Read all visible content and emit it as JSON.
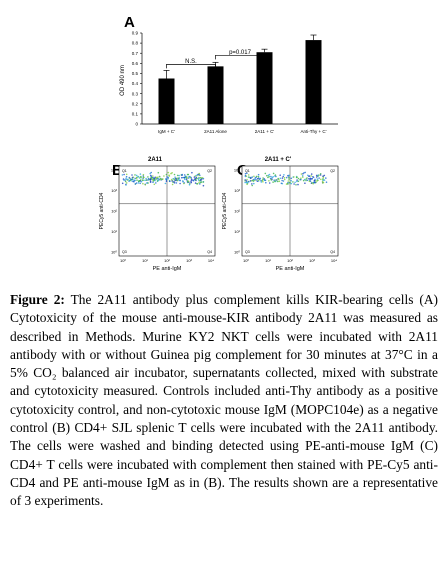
{
  "figure": {
    "panel_a_letter": "A",
    "panel_b_letter": "B",
    "panel_c_letter": "C",
    "panel_b_title": "2A11",
    "panel_c_title": "2A11 + C'",
    "flow_ylabel": "PECy5 anti-CD4",
    "flow_xlabel": "PE anti-IgM",
    "flow_yticks": [
      "10⁴",
      "10³",
      "10²",
      "10¹",
      "10⁰"
    ],
    "flow_xticks": [
      "10⁰",
      "10¹",
      "10²",
      "10³",
      "10⁴"
    ],
    "b_quadrants": [
      "Q1",
      "Q2",
      "Q3",
      "Q4"
    ],
    "c_quadrants": [
      "Q1",
      "Q2",
      "Q3",
      "Q4"
    ]
  },
  "chart_data": {
    "type": "bar",
    "categories": [
      "IgM + C'",
      "2A11 Alone",
      "2A11 + C'",
      "Anti-Thy + C'"
    ],
    "values": [
      0.45,
      0.57,
      0.71,
      0.83
    ],
    "errors": [
      0.08,
      0.04,
      0.03,
      0.05
    ],
    "ylabel": "OD 490 nm",
    "ylim": [
      0,
      0.9
    ],
    "yticks": [
      "0",
      "0.1",
      "0.2",
      "0.3",
      "0.4",
      "0.5",
      "0.6",
      "0.7",
      "0.8",
      "0.9"
    ],
    "bar_color": "#000000",
    "annotations": [
      {
        "text": "N.S.",
        "from": 0,
        "to": 1
      },
      {
        "text": "p=0.017",
        "from": 1,
        "to": 2
      }
    ]
  },
  "caption": {
    "label": "Figure 2:",
    "text": " The 2A11 antibody plus complement kills KIR-bearing cells (A) Cytotoxicity of the mouse anti-mouse-KIR antibody 2A11 was measured as described in Methods. Murine KY2 NKT cells were incubated with 2A11 antibody with or without Guinea pig complement for 30 minutes at 37°C in a 5% CO₂ balanced air incubator, supernatants collected, mixed with substrate and cytotoxicity measured. Controls included anti-Thy antibody as a positive cytotoxicity control, and non-cytotoxic mouse IgM (MOPC104e) as a negative control (B) CD4+ SJL splenic T cells were incubated with the 2A11 antibody. The cells were washed and binding detected using PE-anti-mouse IgM (C) CD4+ T cells were incubated with complement then stained with PE-Cy5 anti-CD4 and PE anti-mouse IgM as in (B). The results shown are a representative of 3 experiments."
  }
}
